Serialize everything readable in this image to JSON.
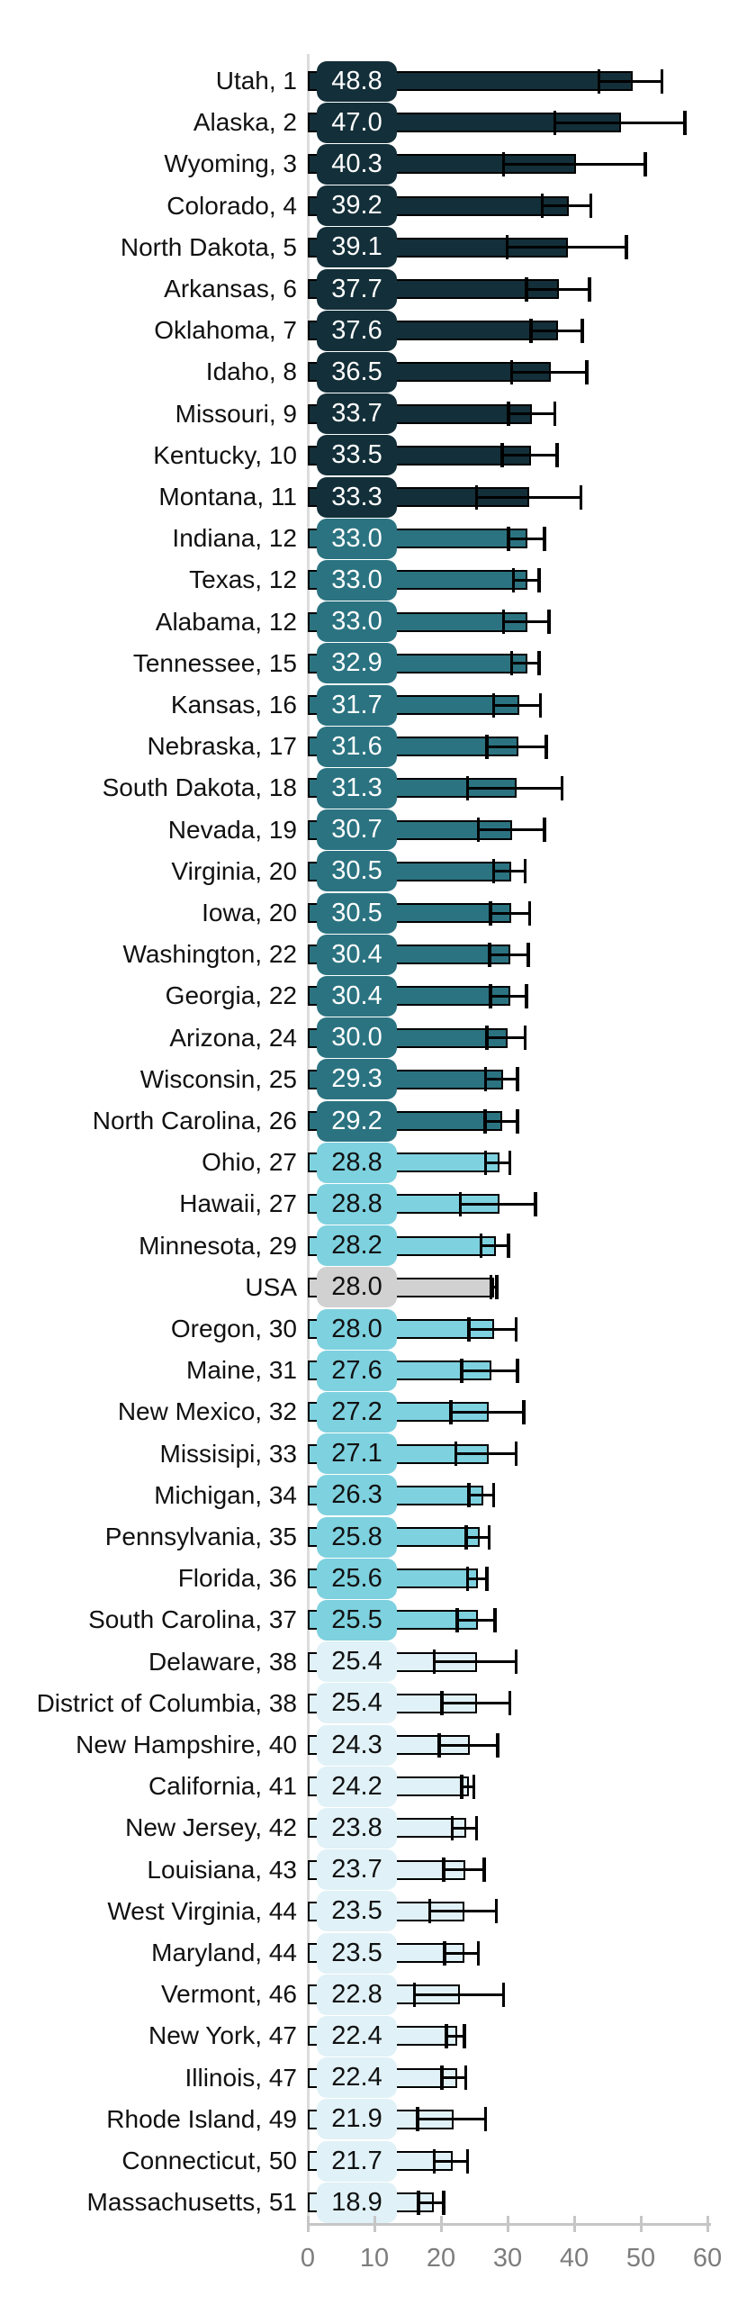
{
  "chart_data": {
    "type": "bar",
    "orientation": "horizontal",
    "title": "",
    "xlabel": "",
    "ylabel": "",
    "xlim": [
      0,
      60
    ],
    "x_ticks": [
      0,
      10,
      20,
      30,
      40,
      50,
      60
    ],
    "grid": false,
    "legend": false,
    "value_format": "one-decimal",
    "colors": {
      "g1": {
        "fill": "#132f39",
        "text": "#ffffff"
      },
      "g2": {
        "fill": "#2b7381",
        "text": "#ffffff"
      },
      "g3": {
        "fill": "#7ed1df",
        "text": "#111111"
      },
      "g4": {
        "fill": "#e0f1f7",
        "text": "#111111"
      },
      "usa": {
        "fill": "#d1d1d1",
        "text": "#111111"
      }
    },
    "axis_colors": {
      "axis_line": "#c6c6c6",
      "tick_label": "#7d7d7d",
      "left_line": "#dcdcdc"
    },
    "rows": [
      {
        "label": "Utah, 1",
        "value": 48.8,
        "ci": [
          43.7,
          53.2
        ],
        "group": "g1"
      },
      {
        "label": "Alaska, 2",
        "value": 47.0,
        "ci": [
          37.1,
          56.6
        ],
        "group": "g1"
      },
      {
        "label": "Wyoming, 3",
        "value": 40.3,
        "ci": [
          29.4,
          50.7
        ],
        "group": "g1"
      },
      {
        "label": "Colorado, 4",
        "value": 39.2,
        "ci": [
          35.2,
          42.5
        ],
        "group": "g1"
      },
      {
        "label": "North Dakota, 5",
        "value": 39.1,
        "ci": [
          29.9,
          47.8
        ],
        "group": "g1"
      },
      {
        "label": "Arkansas, 6",
        "value": 37.7,
        "ci": [
          32.8,
          42.3
        ],
        "group": "g1"
      },
      {
        "label": "Oklahoma, 7",
        "value": 37.6,
        "ci": [
          33.5,
          41.2
        ],
        "group": "g1"
      },
      {
        "label": "Idaho, 8",
        "value": 36.5,
        "ci": [
          30.6,
          41.9
        ],
        "group": "g1"
      },
      {
        "label": "Missouri, 9",
        "value": 33.7,
        "ci": [
          30.1,
          37.1
        ],
        "group": "g1"
      },
      {
        "label": "Kentucky, 10",
        "value": 33.5,
        "ci": [
          29.2,
          37.4
        ],
        "group": "g1"
      },
      {
        "label": "Montana, 11",
        "value": 33.3,
        "ci": [
          25.3,
          41.0
        ],
        "group": "g1"
      },
      {
        "label": "Indiana, 12",
        "value": 33.0,
        "ci": [
          30.1,
          35.5
        ],
        "group": "g2"
      },
      {
        "label": "Texas, 12",
        "value": 33.0,
        "ci": [
          30.9,
          34.7
        ],
        "group": "g2"
      },
      {
        "label": "Alabama, 12",
        "value": 33.0,
        "ci": [
          29.4,
          36.2
        ],
        "group": "g2"
      },
      {
        "label": "Tennessee, 15",
        "value": 32.9,
        "ci": [
          30.6,
          34.7
        ],
        "group": "g2"
      },
      {
        "label": "Kansas, 16",
        "value": 31.7,
        "ci": [
          27.9,
          34.9
        ],
        "group": "g2"
      },
      {
        "label": "Nebraska, 17",
        "value": 31.6,
        "ci": [
          26.9,
          35.8
        ],
        "group": "g2"
      },
      {
        "label": "South Dakota, 18",
        "value": 31.3,
        "ci": [
          24.0,
          38.2
        ],
        "group": "g2"
      },
      {
        "label": "Nevada, 19",
        "value": 30.7,
        "ci": [
          25.6,
          35.5
        ],
        "group": "g2"
      },
      {
        "label": "Virginia, 20",
        "value": 30.5,
        "ci": [
          27.9,
          32.6
        ],
        "group": "g2"
      },
      {
        "label": "Iowa, 20",
        "value": 30.5,
        "ci": [
          27.4,
          33.3
        ],
        "group": "g2"
      },
      {
        "label": "Washington, 22",
        "value": 30.4,
        "ci": [
          27.3,
          33.1
        ],
        "group": "g2"
      },
      {
        "label": "Georgia, 22",
        "value": 30.4,
        "ci": [
          27.4,
          32.8
        ],
        "group": "g2"
      },
      {
        "label": "Arizona, 24",
        "value": 30.0,
        "ci": [
          26.9,
          32.6
        ],
        "group": "g2"
      },
      {
        "label": "Wisconsin, 25",
        "value": 29.3,
        "ci": [
          26.7,
          31.5
        ],
        "group": "g2"
      },
      {
        "label": "North Carolina, 26",
        "value": 29.2,
        "ci": [
          26.6,
          31.5
        ],
        "group": "g2"
      },
      {
        "label": "Ohio, 27",
        "value": 28.8,
        "ci": [
          26.7,
          30.3
        ],
        "group": "g3"
      },
      {
        "label": "Hawaii, 27",
        "value": 28.8,
        "ci": [
          22.9,
          34.2
        ],
        "group": "g3"
      },
      {
        "label": "Minnesota, 29",
        "value": 28.2,
        "ci": [
          26.0,
          30.1
        ],
        "group": "g3"
      },
      {
        "label": "USA",
        "value": 28.0,
        "ci": [
          27.5,
          28.4
        ],
        "group": "usa"
      },
      {
        "label": "Oregon, 30",
        "value": 28.0,
        "ci": [
          24.2,
          31.3
        ],
        "group": "g3"
      },
      {
        "label": "Maine, 31",
        "value": 27.6,
        "ci": [
          23.1,
          31.5
        ],
        "group": "g3"
      },
      {
        "label": "New Mexico, 32",
        "value": 27.2,
        "ci": [
          21.5,
          32.4
        ],
        "group": "g3"
      },
      {
        "label": "Missisipi, 33",
        "value": 27.1,
        "ci": [
          22.2,
          31.3
        ],
        "group": "g3"
      },
      {
        "label": "Michigan, 34",
        "value": 26.3,
        "ci": [
          24.2,
          27.9
        ],
        "group": "g3"
      },
      {
        "label": "Pennsylvania, 35",
        "value": 25.8,
        "ci": [
          23.8,
          27.2
        ],
        "group": "g3"
      },
      {
        "label": "Florida, 36",
        "value": 25.6,
        "ci": [
          24.0,
          26.9
        ],
        "group": "g3"
      },
      {
        "label": "South Carolina, 37",
        "value": 25.5,
        "ci": [
          22.4,
          28.1
        ],
        "group": "g3"
      },
      {
        "label": "Delaware, 38",
        "value": 25.4,
        "ci": [
          19.0,
          31.3
        ],
        "group": "g4"
      },
      {
        "label": "District of Columbia, 38",
        "value": 25.4,
        "ci": [
          20.1,
          30.3
        ],
        "group": "g4"
      },
      {
        "label": "New Hampshire, 40",
        "value": 24.3,
        "ci": [
          19.7,
          28.5
        ],
        "group": "g4"
      },
      {
        "label": "California, 41",
        "value": 24.2,
        "ci": [
          23.1,
          24.9
        ],
        "group": "g4"
      },
      {
        "label": "New Jersey, 42",
        "value": 23.8,
        "ci": [
          21.7,
          25.3
        ],
        "group": "g4"
      },
      {
        "label": "Louisiana, 43",
        "value": 23.7,
        "ci": [
          20.4,
          26.5
        ],
        "group": "g4"
      },
      {
        "label": "West Virginia, 44",
        "value": 23.5,
        "ci": [
          18.3,
          28.3
        ],
        "group": "g4"
      },
      {
        "label": "Maryland, 44",
        "value": 23.5,
        "ci": [
          20.5,
          25.6
        ],
        "group": "g4"
      },
      {
        "label": "Vermont, 46",
        "value": 22.8,
        "ci": [
          16.0,
          29.4
        ],
        "group": "g4"
      },
      {
        "label": "New York, 47",
        "value": 22.4,
        "ci": [
          20.8,
          23.5
        ],
        "group": "g4"
      },
      {
        "label": "Illinois, 47",
        "value": 22.4,
        "ci": [
          20.1,
          23.7
        ],
        "group": "g4"
      },
      {
        "label": "Rhode Island, 49",
        "value": 21.9,
        "ci": [
          16.5,
          26.7
        ],
        "group": "g4"
      },
      {
        "label": "Connecticut, 50",
        "value": 21.7,
        "ci": [
          19.0,
          24.0
        ],
        "group": "g4"
      },
      {
        "label": "Massachusetts, 51",
        "value": 18.9,
        "ci": [
          16.6,
          20.4
        ],
        "group": "g4"
      }
    ]
  }
}
